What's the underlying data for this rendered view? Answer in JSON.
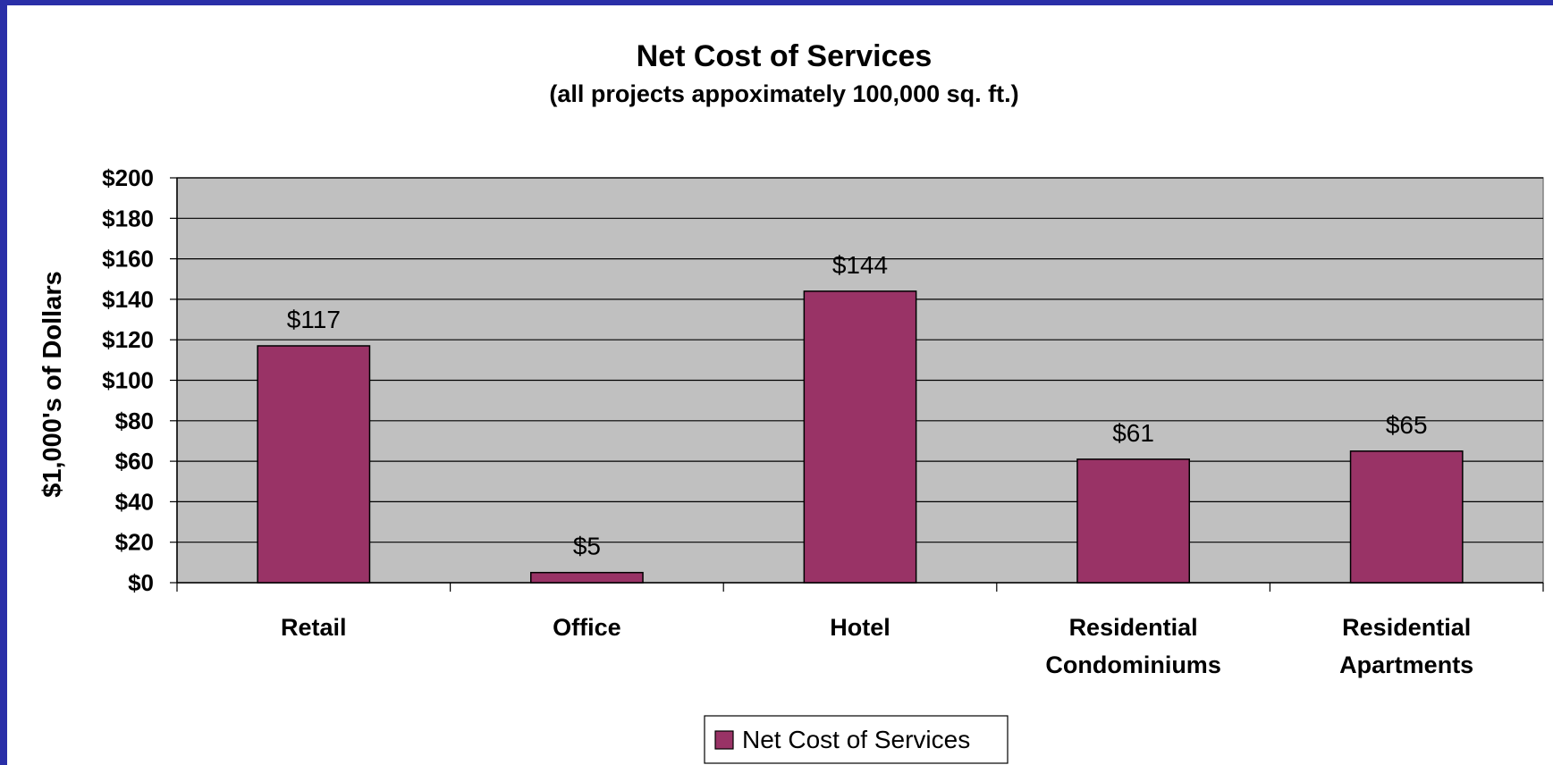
{
  "chart_data": {
    "type": "bar",
    "title": "Net Cost of Services",
    "subtitle": "(all projects appoximately 100,000 sq. ft.)",
    "ylabel": "$1,000's of Dollars",
    "xlabel": "",
    "categories": [
      [
        "Retail"
      ],
      [
        "Office"
      ],
      [
        "Hotel"
      ],
      [
        "Residential",
        "Condominiums"
      ],
      [
        "Residential",
        "Apartments"
      ]
    ],
    "series": [
      {
        "name": "Net Cost of Services",
        "values": [
          117,
          5,
          144,
          61,
          65
        ],
        "data_labels": [
          "$117",
          "$5",
          "$144",
          "$61",
          "$65"
        ]
      }
    ],
    "ylim": [
      0,
      200
    ],
    "yticks": [
      0,
      20,
      40,
      60,
      80,
      100,
      120,
      140,
      160,
      180,
      200
    ],
    "ytick_labels": [
      "$0",
      "$20",
      "$40",
      "$60",
      "$80",
      "$100",
      "$120",
      "$140",
      "$160",
      "$180",
      "$200"
    ],
    "grid": true,
    "legend_position": "bottom",
    "colors": {
      "bar": "#993366",
      "plot_background": "#c0c0c0",
      "border": "#2a2fa8"
    }
  }
}
